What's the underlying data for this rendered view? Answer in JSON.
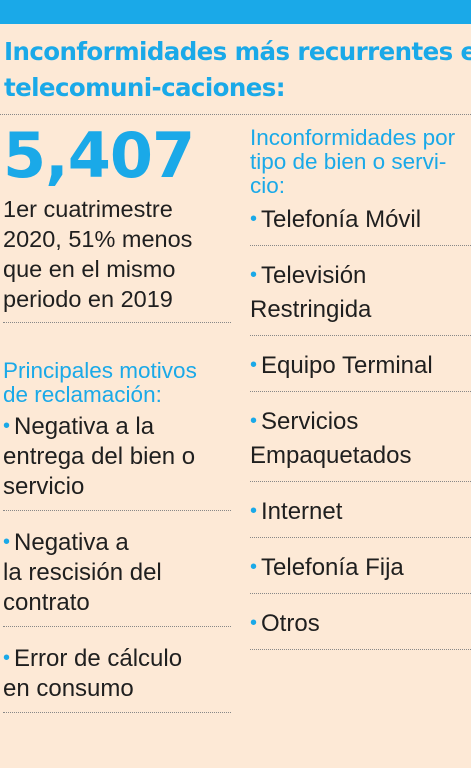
{
  "headline": {
    "line1": "Inconformidades más recurrentes en",
    "line2": "telecomuni-caciones:"
  },
  "summary": {
    "big_number": "5,407",
    "lines": [
      "1er cuatrimestre",
      "2020, 51% menos",
      "que en el mismo",
      "periodo en 2019"
    ]
  },
  "motivos": {
    "title_lines": [
      "Principales motivos",
      "de reclamación:"
    ],
    "items": [
      {
        "lines": [
          "Negativa a la",
          "entrega del bien o",
          "servicio"
        ]
      },
      {
        "lines": [
          "Negativa a",
          "la rescisión del",
          "contrato"
        ]
      },
      {
        "lines": [
          "Error de cálculo",
          "en consumo"
        ]
      }
    ]
  },
  "tipos": {
    "title_lines": [
      "Inconformidades por",
      "tipo de bien o servi-",
      "cio:"
    ],
    "items": [
      {
        "lines": [
          "Telefonía Móvil"
        ]
      },
      {
        "lines": [
          "Televisión",
          "Restringida"
        ]
      },
      {
        "lines": [
          "Equipo Terminal"
        ]
      },
      {
        "lines": [
          "Servicios",
          "Empaquetados"
        ]
      },
      {
        "lines": [
          "Internet"
        ]
      },
      {
        "lines": [
          "Telefonía Fija"
        ]
      },
      {
        "lines": [
          "Otros"
        ]
      }
    ]
  },
  "bullet_symbol": "•",
  "colors": {
    "accent": "#1aa9e8",
    "background": "#fde9d6",
    "text": "#1f1f1f"
  }
}
